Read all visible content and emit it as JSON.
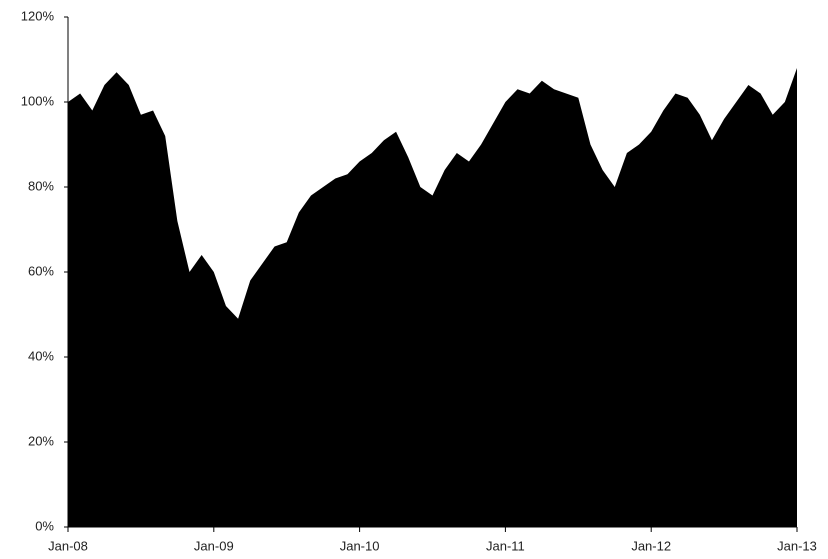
{
  "chart_data": {
    "type": "area",
    "color": "#000000",
    "categories": [
      "Jan-08",
      null,
      null,
      null,
      null,
      null,
      null,
      null,
      null,
      null,
      null,
      null,
      "Jan-09",
      null,
      null,
      null,
      null,
      null,
      null,
      null,
      null,
      null,
      null,
      null,
      "Jan-10",
      null,
      null,
      null,
      null,
      null,
      null,
      null,
      null,
      null,
      null,
      null,
      "Jan-11",
      null,
      null,
      null,
      null,
      null,
      null,
      null,
      null,
      null,
      null,
      null,
      "Jan-12",
      null,
      null,
      null,
      null,
      null,
      null,
      null,
      null,
      null,
      null,
      null,
      "Jan-13"
    ],
    "values": [
      100,
      102,
      98,
      104,
      107,
      104,
      97,
      98,
      92,
      72,
      60,
      64,
      60,
      52,
      49,
      58,
      62,
      66,
      67,
      74,
      78,
      80,
      82,
      83,
      86,
      88,
      91,
      93,
      87,
      80,
      78,
      84,
      88,
      86,
      90,
      95,
      100,
      103,
      102,
      105,
      103,
      102,
      101,
      90,
      84,
      80,
      88,
      90,
      93,
      98,
      102,
      101,
      97,
      91,
      96,
      100,
      104,
      102,
      97,
      100,
      108
    ],
    "ylim": [
      0,
      120
    ],
    "yticks": [
      {
        "value": 0,
        "label": "0%"
      },
      {
        "value": 20,
        "label": "20%"
      },
      {
        "value": 40,
        "label": "40%"
      },
      {
        "value": 60,
        "label": "60%"
      },
      {
        "value": 80,
        "label": "80%"
      },
      {
        "value": 100,
        "label": "100%"
      },
      {
        "value": 120,
        "label": "120%"
      }
    ]
  }
}
